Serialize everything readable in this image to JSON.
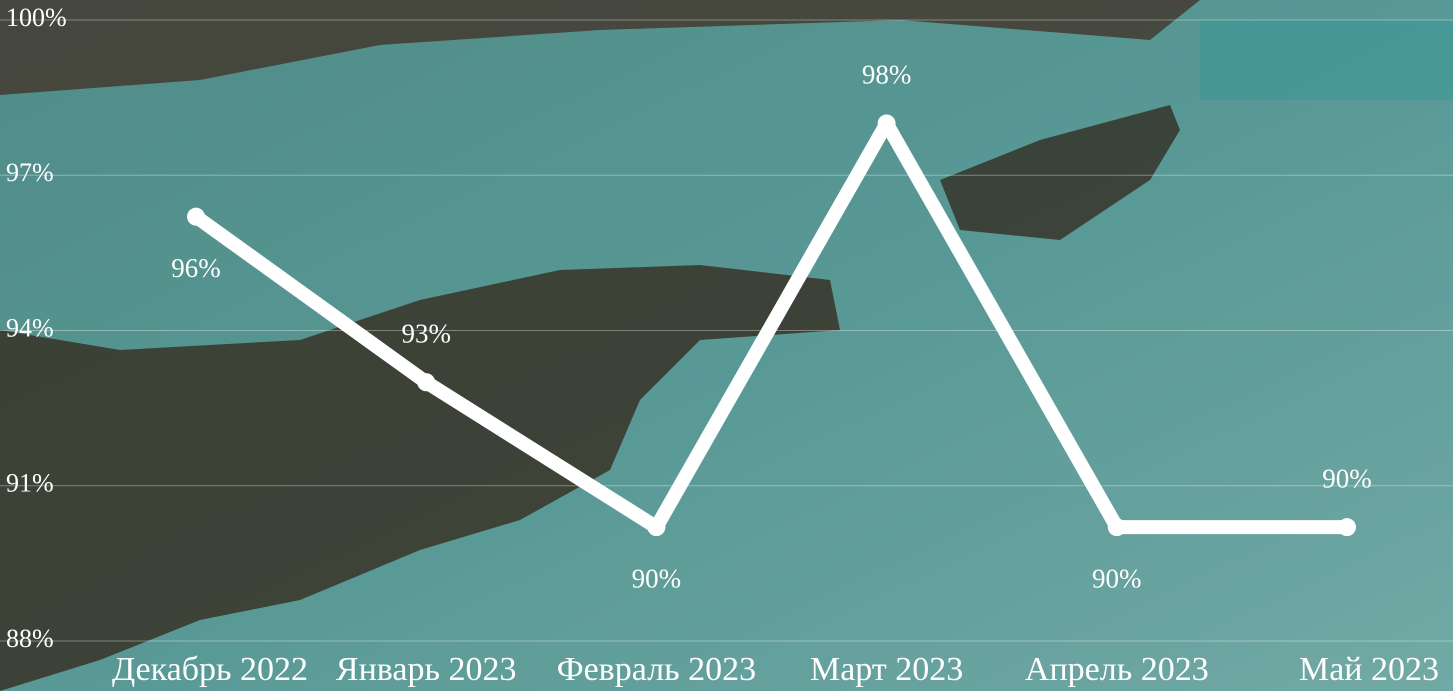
{
  "chart_data": {
    "type": "line",
    "categories": [
      "Декабрь 2022",
      "Январь 2023",
      "Февраль 2023",
      "Март 2023",
      "Апрель 2023",
      "Май 2023"
    ],
    "series": [
      {
        "color": "#ffffff",
        "values": [
          96.2,
          93.0,
          90.2,
          98.0,
          90.2,
          90.2
        ],
        "value_labels": [
          "96%",
          "93%",
          "90%",
          "98%",
          "90%",
          "90%"
        ]
      }
    ],
    "ylim": [
      88,
      100
    ],
    "yticks": [
      {
        "value": 88,
        "label": "88%"
      },
      {
        "value": 91,
        "label": "91%"
      },
      {
        "value": 94,
        "label": "94%"
      },
      {
        "value": 97,
        "label": "97%"
      },
      {
        "value": 100,
        "label": "100%"
      }
    ],
    "grid": true
  }
}
